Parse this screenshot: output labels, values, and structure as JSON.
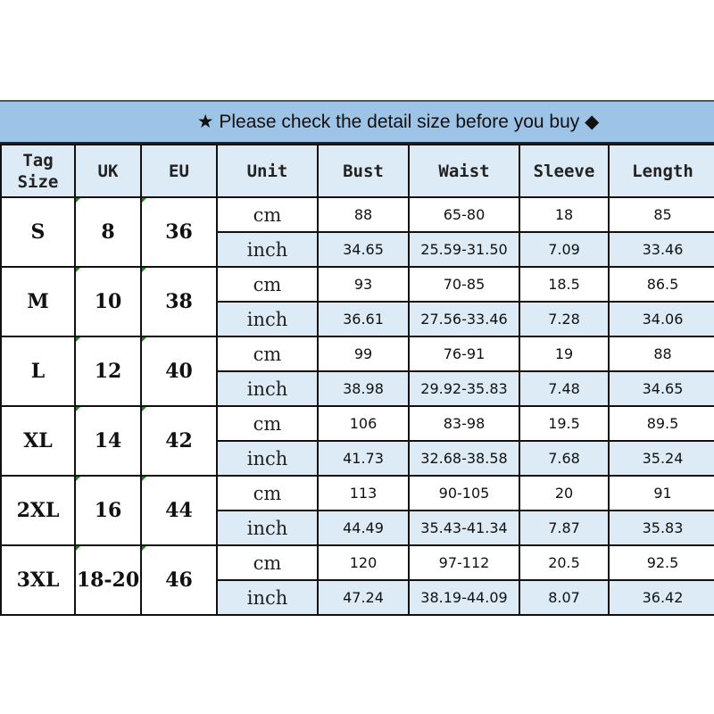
{
  "title": "★ Please check the detail size before you buy ◆",
  "colors": {
    "title_bg": "#9dc3e6",
    "header_bg": "#ddebf7",
    "inch_row_bg": "#ddebf7"
  },
  "headers": [
    "Tag Size",
    "UK",
    "EU",
    "Unit",
    "Bust",
    "Waist",
    "Sleeve",
    "Length"
  ],
  "sizes": [
    {
      "tag": "S",
      "uk": "8",
      "eu": "36",
      "cm": [
        "88",
        "65-80",
        "18",
        "85"
      ],
      "inch": [
        "34.65",
        "25.59-31.50",
        "7.09",
        "33.46"
      ]
    },
    {
      "tag": "M",
      "uk": "10",
      "eu": "38",
      "cm": [
        "93",
        "70-85",
        "18.5",
        "86.5"
      ],
      "inch": [
        "36.61",
        "27.56-33.46",
        "7.28",
        "34.06"
      ]
    },
    {
      "tag": "L",
      "uk": "12",
      "eu": "40",
      "cm": [
        "99",
        "76-91",
        "19",
        "88"
      ],
      "inch": [
        "38.98",
        "29.92-35.83",
        "7.48",
        "34.65"
      ]
    },
    {
      "tag": "XL",
      "uk": "14",
      "eu": "42",
      "cm": [
        "106",
        "83-98",
        "19.5",
        "89.5"
      ],
      "inch": [
        "41.73",
        "32.68-38.58",
        "7.68",
        "35.24"
      ]
    },
    {
      "tag": "2XL",
      "uk": "16",
      "eu": "44",
      "cm": [
        "113",
        "90-105",
        "20",
        "91"
      ],
      "inch": [
        "44.49",
        "35.43-41.34",
        "7.87",
        "35.83"
      ]
    },
    {
      "tag": "3XL",
      "uk": "18-20",
      "eu": "46",
      "cm": [
        "120",
        "97-112",
        "20.5",
        "92.5"
      ],
      "inch": [
        "47.24",
        "38.19-44.09",
        "8.07",
        "36.42"
      ]
    }
  ],
  "units": {
    "cm": "cm",
    "inch": "inch"
  }
}
